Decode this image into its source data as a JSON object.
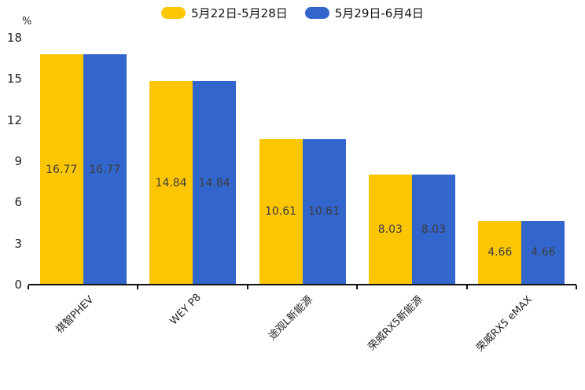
{
  "legend": {
    "items": [
      {
        "label": "5月22日-5月28日",
        "color": "#FDC602"
      },
      {
        "label": "5月29日-6月4日",
        "color": "#3366CC"
      }
    ]
  },
  "yaxis": {
    "unit_label": "%",
    "ticks": [
      0,
      3,
      6,
      9,
      12,
      15,
      18
    ]
  },
  "chart_data": {
    "type": "bar",
    "title": "",
    "categories": [
      "祺智PHEV",
      "WEY P8",
      "途观L新能源",
      "荣威RX5新能源",
      "荣威RX5 eMAX"
    ],
    "series": [
      {
        "name": "5月22日-5月28日",
        "color": "#FDC602",
        "values": [
          16.77,
          14.84,
          10.61,
          8.03,
          4.66
        ]
      },
      {
        "name": "5月29日-6月4日",
        "color": "#3366CC",
        "values": [
          16.77,
          14.84,
          10.61,
          8.03,
          4.66
        ]
      }
    ],
    "value_labels": [
      "16.77",
      "14.84",
      "10.61",
      "8.03",
      "4.66"
    ],
    "xlabel": "",
    "ylabel": "%",
    "ylim": [
      0,
      18
    ],
    "grid": false,
    "legend_position": "top",
    "bar_labels_inside": true,
    "value_label_color": "#3d3d3d",
    "axis_color": "#111111"
  }
}
